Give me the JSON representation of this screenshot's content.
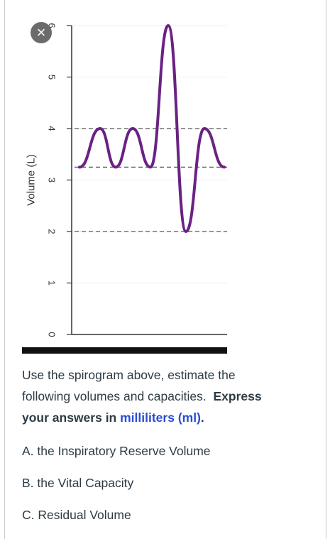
{
  "chart_data": {
    "type": "line",
    "title": "",
    "ylabel": "Volume (L)",
    "xlabel": "",
    "ylim": [
      0,
      6
    ],
    "yticks": [
      "0",
      "1",
      "2",
      "3",
      "4",
      "5",
      "6"
    ],
    "reference_lines": [
      4,
      3.25,
      2
    ],
    "line_color": "#6a2283",
    "series": [
      {
        "values": [
          3.25,
          4.0,
          3.25,
          4.0,
          3.25,
          6.0,
          2.0,
          4.0,
          3.25
        ]
      }
    ]
  },
  "question": {
    "line1": "Use the spirogram above, estimate the",
    "line2a": "following volumes and capacities.",
    "line2b": "Express",
    "line3a": "your answers in",
    "line3b": "milliliters (ml)",
    "line3c": "."
  },
  "items": [
    {
      "label": "A. the Inspiratory Reserve Volume"
    },
    {
      "label": "B. the Vital Capacity"
    },
    {
      "label": "C. Residual Volume"
    }
  ],
  "close_icon": "×"
}
